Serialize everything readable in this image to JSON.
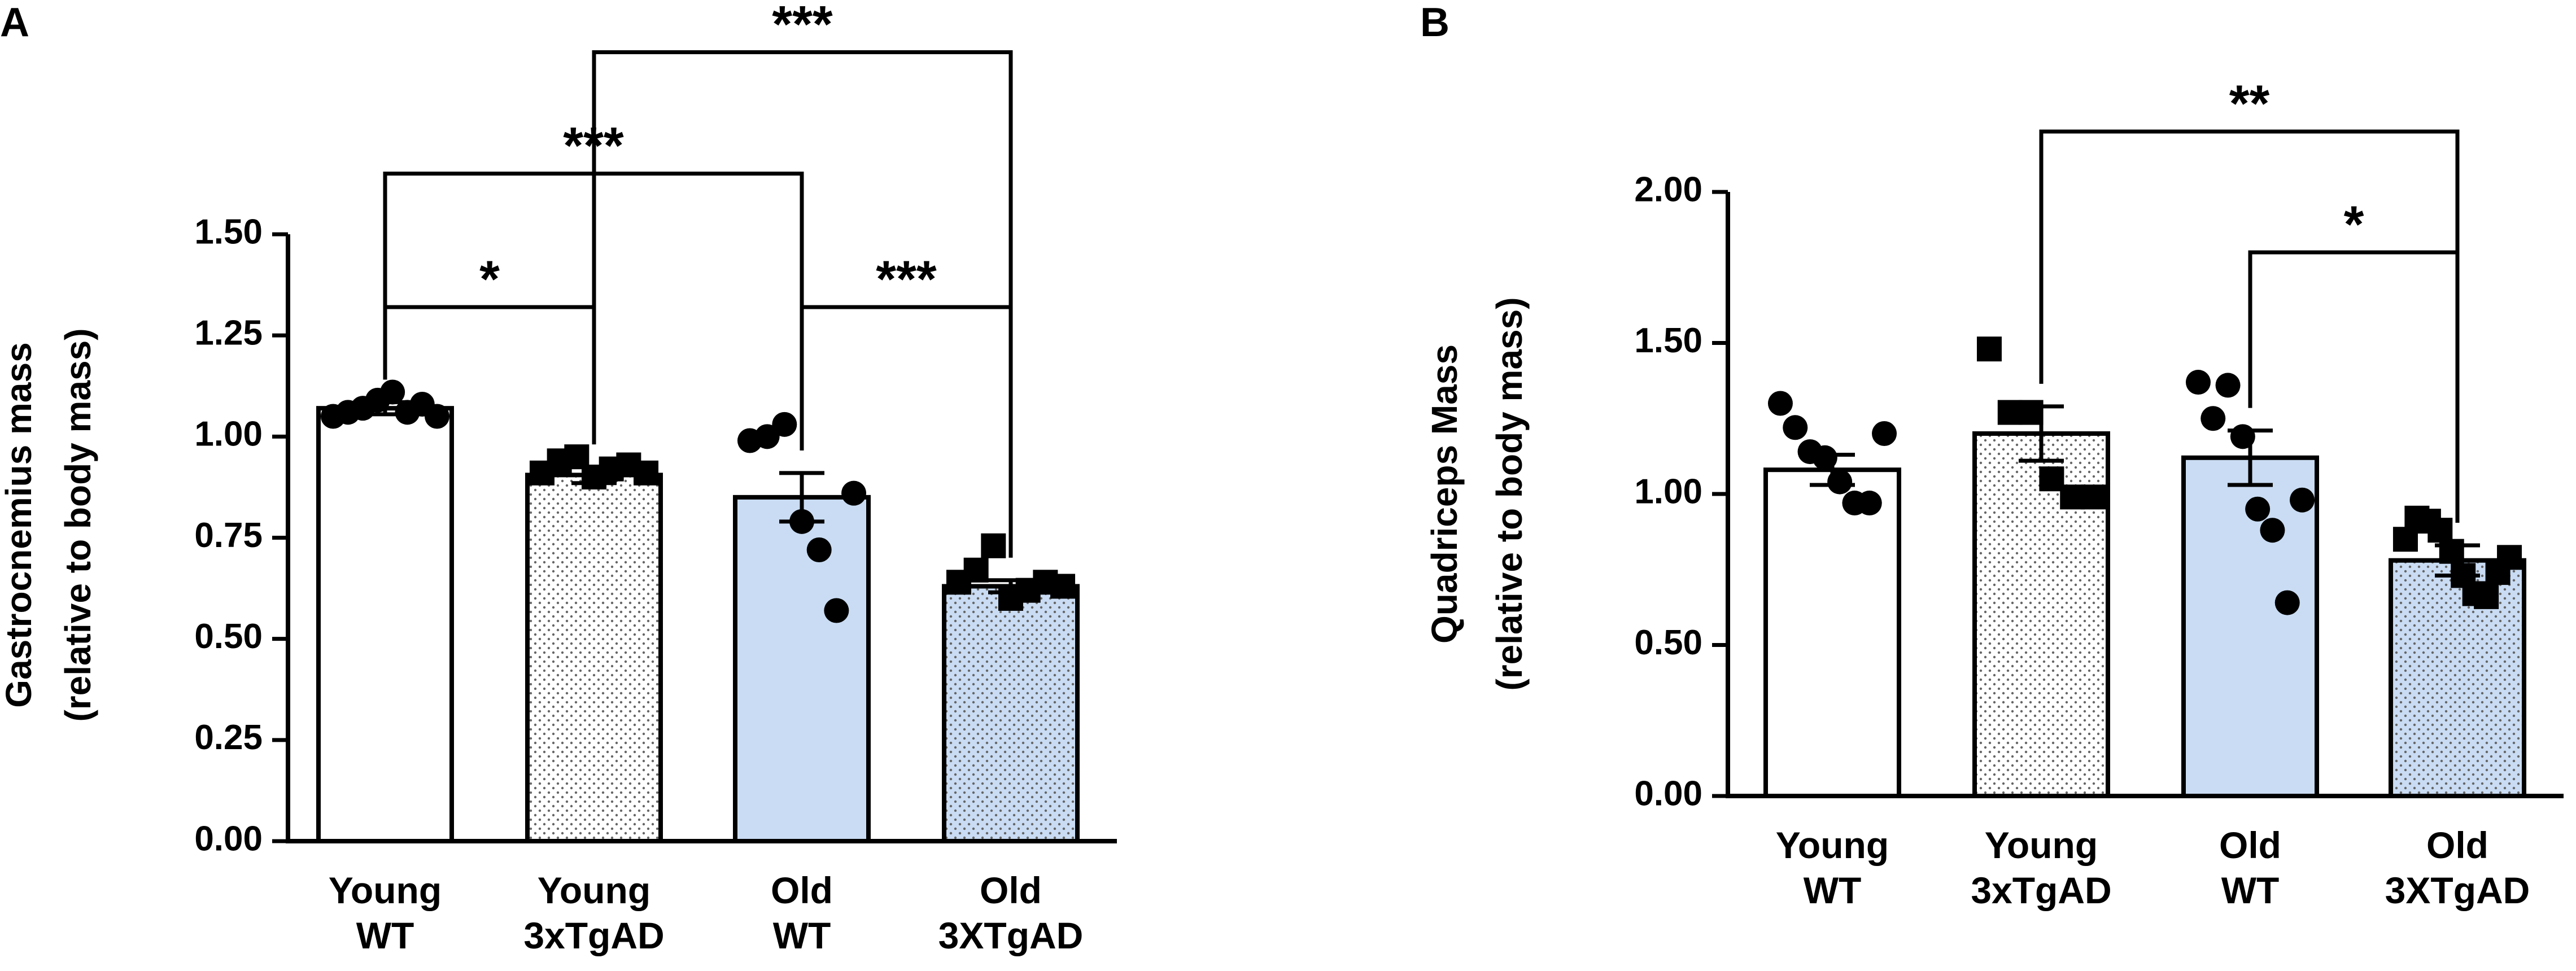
{
  "colors": {
    "axis": "#000000",
    "bar_wt": "#ffffff",
    "bar_old": "#c9dcf3",
    "dot_pattern": "#666666",
    "marker": "#000000"
  },
  "chart_data": [
    {
      "panel": "A",
      "type": "bar",
      "ylabel_lines": [
        "Gastrocnemius mass",
        "(relative to body mass)"
      ],
      "ylim": [
        0,
        1.5
      ],
      "yticks": [
        "0.00",
        "0.25",
        "0.50",
        "0.75",
        "1.00",
        "1.25",
        "1.50"
      ],
      "ytick_values": [
        0,
        0.25,
        0.5,
        0.75,
        1.0,
        1.25,
        1.5
      ],
      "categories": [
        {
          "line1": "Young",
          "line2": "WT",
          "fill": "white",
          "pattern": false,
          "marker": "circle",
          "mean": 1.07,
          "sem": 0.015,
          "points": [
            1.05,
            1.06,
            1.07,
            1.09,
            1.11,
            1.06,
            1.08,
            1.05
          ]
        },
        {
          "line1": "Young",
          "line2": "3xTgAD",
          "fill": "white",
          "pattern": true,
          "marker": "square",
          "mean": 0.905,
          "sem": 0.02,
          "points": [
            0.91,
            0.94,
            0.95,
            0.9,
            0.92,
            0.93,
            0.91
          ]
        },
        {
          "line1": "Old",
          "line2": "WT",
          "fill": "blue",
          "pattern": false,
          "marker": "circle",
          "mean": 0.85,
          "sem": 0.06,
          "points": [
            0.99,
            1.0,
            1.03,
            0.79,
            0.72,
            0.57,
            0.86
          ]
        },
        {
          "line1": "Old",
          "line2": "3XTgAD",
          "fill": "blue",
          "pattern": true,
          "marker": "square",
          "mean": 0.63,
          "sem": 0.015,
          "points": [
            0.64,
            0.67,
            0.73,
            0.6,
            0.62,
            0.64,
            0.63
          ]
        }
      ],
      "significance": [
        {
          "from": 0,
          "to": 1,
          "label": "*",
          "level": 1.32
        },
        {
          "from": 0,
          "to": 2,
          "label": "***",
          "level": 1.65
        },
        {
          "from": 2,
          "to": 3,
          "label": "***",
          "level": 1.32
        },
        {
          "from": 1,
          "to": 3,
          "label": "***",
          "level": 1.95
        }
      ]
    },
    {
      "panel": "B",
      "type": "bar",
      "ylabel_lines": [
        "Quadriceps Mass",
        "(relative to body mass)"
      ],
      "ylim": [
        0,
        2.0
      ],
      "yticks": [
        "0.00",
        "0.50",
        "1.00",
        "1.50",
        "2.00"
      ],
      "ytick_values": [
        0,
        0.5,
        1.0,
        1.5,
        2.0
      ],
      "categories": [
        {
          "line1": "Young",
          "line2": "WT",
          "fill": "white",
          "pattern": false,
          "marker": "circle",
          "mean": 1.08,
          "sem": 0.05,
          "points": [
            1.3,
            1.22,
            1.14,
            1.12,
            1.04,
            0.97,
            0.97,
            1.2
          ]
        },
        {
          "line1": "Young",
          "line2": "3xTgAD",
          "fill": "white",
          "pattern": true,
          "marker": "square",
          "mean": 1.2,
          "sem": 0.09,
          "points": [
            1.48,
            1.27,
            1.27,
            1.05,
            0.99,
            0.99
          ]
        },
        {
          "line1": "Old",
          "line2": "WT",
          "fill": "blue",
          "pattern": false,
          "marker": "circle",
          "mean": 1.12,
          "sem": 0.09,
          "points": [
            1.37,
            1.25,
            1.36,
            1.19,
            0.95,
            0.88,
            0.64,
            0.98
          ]
        },
        {
          "line1": "Old",
          "line2": "3XTgAD",
          "fill": "blue",
          "pattern": true,
          "marker": "square",
          "mean": 0.78,
          "sem": 0.05,
          "points": [
            0.85,
            0.92,
            0.91,
            0.88,
            0.81,
            0.73,
            0.67,
            0.66,
            0.74,
            0.79
          ]
        }
      ],
      "significance": [
        {
          "from": 1,
          "to": 3,
          "label": "**",
          "level": 2.2
        },
        {
          "from": 2,
          "to": 3,
          "label": "*",
          "level": 1.8
        }
      ]
    }
  ]
}
